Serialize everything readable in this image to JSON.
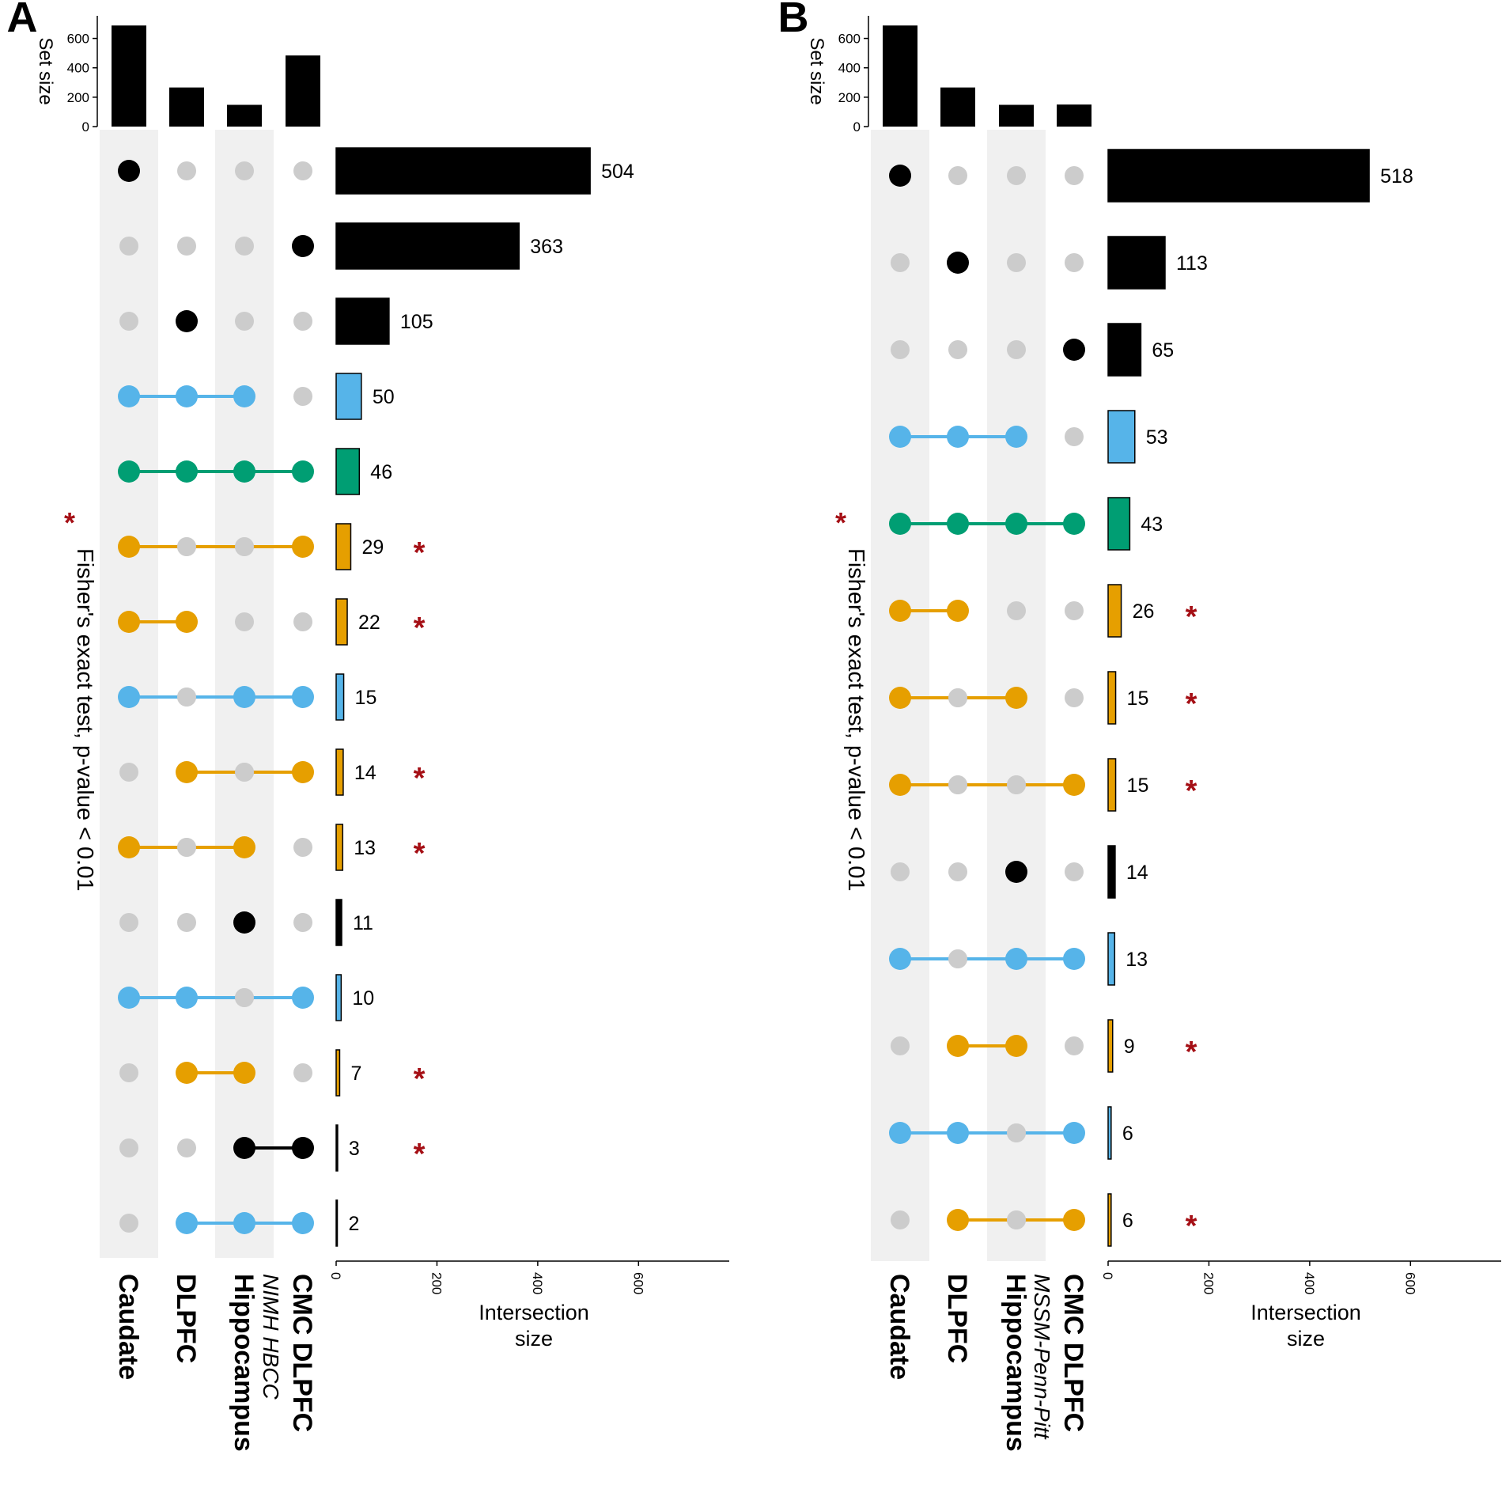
{
  "colors": {
    "black": "#000000",
    "blue": "#56B4E9",
    "green": "#009E73",
    "orange": "#E69F00",
    "inactive_dot": "#cccccc",
    "stripe": "#f0f0f0",
    "star": "#a50f15"
  },
  "star_symbol": "*",
  "legend_text": "Fisher's exact test, p-value < 0.01",
  "chart_data": [
    {
      "type": "upset",
      "panel_label": "A",
      "sets": [
        "Caudate",
        "DLPFC",
        "Hippocampus",
        "CMC DLPFC"
      ],
      "set_sublabels": [
        "",
        "",
        "",
        "NIMH HBCC"
      ],
      "set_sizes": [
        688,
        266,
        148,
        484
      ],
      "set_size_axis": {
        "label": "Set size",
        "ticks": [
          0,
          200,
          400,
          600
        ],
        "max": 700
      },
      "intersection_axis": {
        "label": [
          "Intersection",
          "size"
        ],
        "ticks": [
          0,
          200,
          400,
          600
        ],
        "max": 780
      },
      "intersections": [
        {
          "members": [
            1,
            0,
            0,
            0
          ],
          "size": 504,
          "color": "black",
          "significant": false
        },
        {
          "members": [
            0,
            0,
            0,
            1
          ],
          "size": 363,
          "color": "black",
          "significant": false
        },
        {
          "members": [
            0,
            1,
            0,
            0
          ],
          "size": 105,
          "color": "black",
          "significant": false
        },
        {
          "members": [
            1,
            1,
            1,
            0
          ],
          "size": 50,
          "color": "blue",
          "significant": false
        },
        {
          "members": [
            1,
            1,
            1,
            1
          ],
          "size": 46,
          "color": "green",
          "significant": false
        },
        {
          "members": [
            1,
            0,
            0,
            1
          ],
          "size": 29,
          "color": "orange",
          "significant": true
        },
        {
          "members": [
            1,
            1,
            0,
            0
          ],
          "size": 22,
          "color": "orange",
          "significant": true
        },
        {
          "members": [
            1,
            0,
            1,
            1
          ],
          "size": 15,
          "color": "blue",
          "significant": false
        },
        {
          "members": [
            0,
            1,
            0,
            1
          ],
          "size": 14,
          "color": "orange",
          "significant": true
        },
        {
          "members": [
            1,
            0,
            1,
            0
          ],
          "size": 13,
          "color": "orange",
          "significant": true
        },
        {
          "members": [
            0,
            0,
            1,
            0
          ],
          "size": 11,
          "color": "black",
          "significant": false
        },
        {
          "members": [
            1,
            1,
            0,
            1
          ],
          "size": 10,
          "color": "blue",
          "significant": false
        },
        {
          "members": [
            0,
            1,
            1,
            0
          ],
          "size": 7,
          "color": "orange",
          "significant": true
        },
        {
          "members": [
            0,
            0,
            1,
            1
          ],
          "size": 3,
          "color": "black",
          "significant": true
        },
        {
          "members": [
            0,
            1,
            1,
            1
          ],
          "size": 2,
          "color": "blue",
          "significant": false
        }
      ]
    },
    {
      "type": "upset",
      "panel_label": "B",
      "sets": [
        "Caudate",
        "DLPFC",
        "Hippocampus",
        "CMC DLPFC"
      ],
      "set_sublabels": [
        "",
        "",
        "",
        "MSSM-Penn-Pitt"
      ],
      "set_sizes": [
        688,
        266,
        148,
        150
      ],
      "set_size_axis": {
        "label": "Set size",
        "ticks": [
          0,
          200,
          400,
          600
        ],
        "max": 700
      },
      "intersection_axis": {
        "label": [
          "Intersection",
          "size"
        ],
        "ticks": [
          0,
          200,
          400,
          600
        ],
        "max": 780
      },
      "intersections": [
        {
          "members": [
            1,
            0,
            0,
            0
          ],
          "size": 518,
          "color": "black",
          "significant": false
        },
        {
          "members": [
            0,
            1,
            0,
            0
          ],
          "size": 113,
          "color": "black",
          "significant": false
        },
        {
          "members": [
            0,
            0,
            0,
            1
          ],
          "size": 65,
          "color": "black",
          "significant": false
        },
        {
          "members": [
            1,
            1,
            1,
            0
          ],
          "size": 53,
          "color": "blue",
          "significant": false
        },
        {
          "members": [
            1,
            1,
            1,
            1
          ],
          "size": 43,
          "color": "green",
          "significant": false
        },
        {
          "members": [
            1,
            1,
            0,
            0
          ],
          "size": 26,
          "color": "orange",
          "significant": true
        },
        {
          "members": [
            1,
            0,
            1,
            0
          ],
          "size": 15,
          "color": "orange",
          "significant": true
        },
        {
          "members": [
            1,
            0,
            0,
            1
          ],
          "size": 15,
          "color": "orange",
          "significant": true
        },
        {
          "members": [
            0,
            0,
            1,
            0
          ],
          "size": 14,
          "color": "black",
          "significant": false
        },
        {
          "members": [
            1,
            0,
            1,
            1
          ],
          "size": 13,
          "color": "blue",
          "significant": false
        },
        {
          "members": [
            0,
            1,
            1,
            0
          ],
          "size": 9,
          "color": "orange",
          "significant": true
        },
        {
          "members": [
            1,
            1,
            0,
            1
          ],
          "size": 6,
          "color": "blue",
          "significant": false
        },
        {
          "members": [
            0,
            1,
            0,
            1
          ],
          "size": 6,
          "color": "orange",
          "significant": true
        }
      ]
    }
  ]
}
